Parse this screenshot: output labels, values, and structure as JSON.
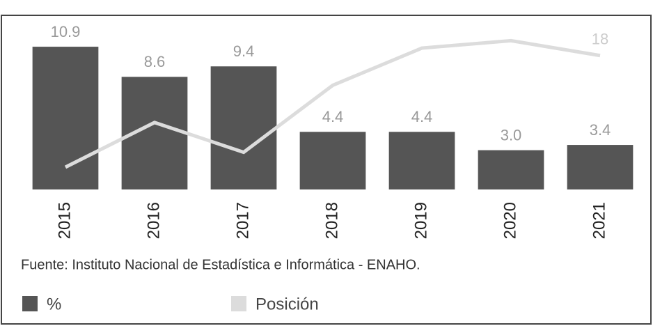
{
  "chart_data": {
    "type": "bar",
    "categories": [
      "2015",
      "2016",
      "2017",
      "2018",
      "2019",
      "2020",
      "2021"
    ],
    "series": [
      {
        "name": "%",
        "type": "bar",
        "color": "#555555",
        "values": [
          10.9,
          8.6,
          9.4,
          4.4,
          4.4,
          3.0,
          3.4
        ],
        "value_labels": [
          "10.9",
          "8.6",
          "9.4",
          "4.4",
          "4.4",
          "3.0",
          "3.4"
        ]
      },
      {
        "name": "Posición",
        "type": "line",
        "axis": "y2",
        "color": "#dcdcdc",
        "values": [
          3,
          9,
          5,
          14,
          19,
          20,
          18
        ],
        "value_labels": [
          null,
          null,
          null,
          null,
          null,
          null,
          "18"
        ]
      }
    ],
    "ylim": [
      0,
      12.5
    ],
    "y2lim": [
      0,
      22
    ],
    "source": "Fuente: Instituto Nacional de Estadística e Informática - ENAHO."
  }
}
